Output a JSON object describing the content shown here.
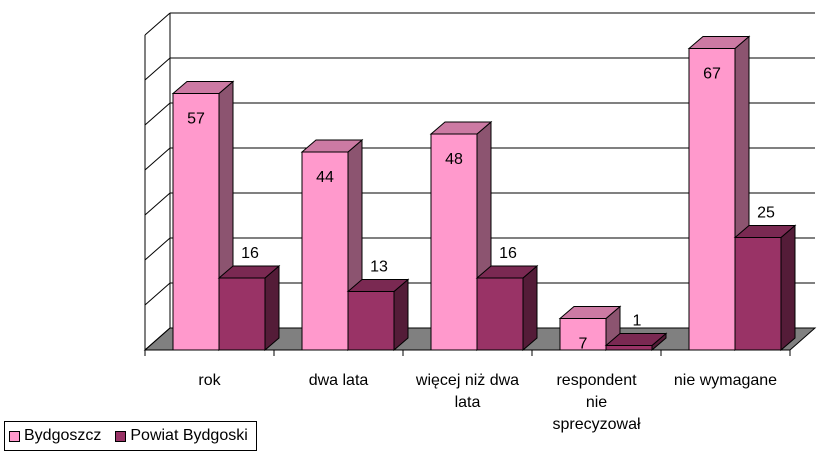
{
  "chart_data": {
    "type": "bar3d",
    "categories": [
      "rok",
      "dwa lata",
      "więcej niż dwa lata",
      "respondent nie sprecyzował",
      "nie wymagane"
    ],
    "series": [
      {
        "name": "Bydgoszcz",
        "color": "#ff99cc",
        "values": [
          57,
          44,
          48,
          7,
          67
        ]
      },
      {
        "name": "Powiat Bydgoski",
        "color": "#993366",
        "values": [
          16,
          13,
          16,
          1,
          25
        ]
      }
    ],
    "ylim": [
      0,
      70
    ],
    "yticks": [
      0,
      10,
      20,
      30,
      40,
      50,
      60,
      70
    ],
    "grid": true,
    "legend": "bottom-left"
  }
}
